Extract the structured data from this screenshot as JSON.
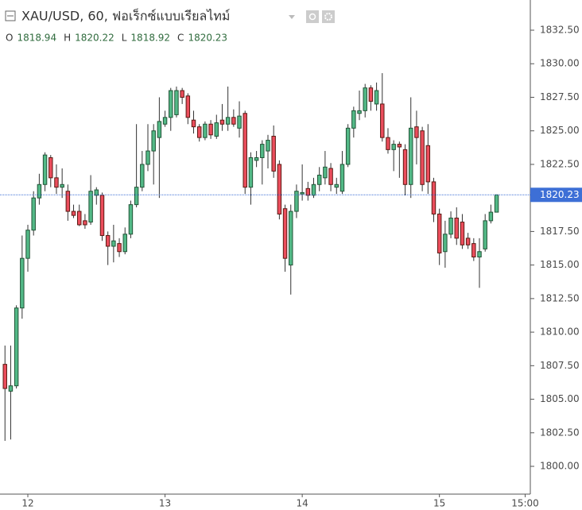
{
  "chart_data": {
    "type": "candlestick",
    "title": "XAU/USD, 60, ฟอเร็กซ์แบบเรียลไทม์",
    "ohlc_letters": [
      "O",
      "H",
      "L",
      "C"
    ],
    "x": [
      -4,
      -3,
      -2,
      -1,
      0,
      1,
      2,
      3,
      4,
      5,
      6,
      7,
      8,
      9,
      10,
      11,
      12,
      13,
      14,
      15,
      16,
      17,
      18,
      19,
      20,
      21,
      22,
      23,
      24,
      25,
      26,
      27,
      28,
      29,
      30,
      31,
      32,
      33,
      34,
      35,
      36,
      37,
      38,
      39,
      40,
      41,
      42,
      43,
      44,
      45,
      46,
      47,
      48,
      49,
      50,
      51,
      52,
      53,
      54,
      55,
      56,
      57,
      58,
      59,
      60,
      61,
      62,
      63,
      64,
      65,
      66,
      67,
      68,
      69,
      70,
      71,
      72,
      73,
      74,
      75,
      76,
      77,
      78,
      79,
      80,
      81,
      82
    ],
    "open": [
      1807.6,
      1805.6,
      1806.0,
      1811.8,
      1815.5,
      1817.6,
      1820.0,
      1821.0,
      1823.0,
      1821.5,
      1820.8,
      1820.5,
      1819.0,
      1819.0,
      1818.3,
      1818.2,
      1820.2,
      1820.2,
      1817.2,
      1816.4,
      1816.6,
      1816.0,
      1817.3,
      1819.5,
      1820.8,
      1822.5,
      1823.5,
      1824.5,
      1825.5,
      1826.0,
      1826.2,
      1828.0,
      1827.6,
      1825.8,
      1825.3,
      1824.5,
      1825.5,
      1824.6,
      1825.8,
      1825.5,
      1826.0,
      1825.2,
      1826.3,
      1820.8,
      1822.8,
      1823.0,
      1823.5,
      1824.6,
      1822.5,
      1819.2,
      1815.0,
      1819.0,
      1820.3,
      1820.7,
      1820.2,
      1821.0,
      1821.5,
      1822.2,
      1820.8,
      1820.5,
      1822.5,
      1825.2,
      1826.3,
      1826.5,
      1828.2,
      1827.0,
      1827.0,
      1824.5,
      1823.6,
      1824.0,
      1823.6,
      1821.0,
      1825.3,
      1825.0,
      1823.9,
      1821.2,
      1818.8,
      1816.0,
      1817.3,
      1818.5,
      1818.2,
      1817.0,
      1816.6,
      1815.6,
      1816.2,
      1818.3,
      1818.94
    ],
    "high": [
      1809.0,
      1809.0,
      1812.0,
      1817.2,
      1818.0,
      1820.5,
      1821.8,
      1823.4,
      1823.2,
      1822.5,
      1822.2,
      1821.0,
      1819.5,
      1819.5,
      1818.8,
      1821.7,
      1820.8,
      1820.4,
      1817.5,
      1818.0,
      1817.0,
      1817.8,
      1819.8,
      1825.5,
      1823.5,
      1825.5,
      1825.5,
      1827.5,
      1826.5,
      1828.2,
      1828.3,
      1828.2,
      1827.8,
      1826.5,
      1825.5,
      1825.7,
      1825.8,
      1826.2,
      1827.0,
      1828.3,
      1826.6,
      1827.2,
      1826.5,
      1823.4,
      1823.5,
      1824.3,
      1824.7,
      1825.4,
      1822.8,
      1819.5,
      1819.5,
      1821.0,
      1822.5,
      1821.2,
      1821.5,
      1822.3,
      1823.5,
      1822.6,
      1821.5,
      1823.5,
      1825.5,
      1826.8,
      1828.0,
      1828.5,
      1828.4,
      1828.6,
      1829.3,
      1825.2,
      1824.3,
      1824.2,
      1824.0,
      1827.5,
      1826.5,
      1825.3,
      1825.5,
      1821.5,
      1819.2,
      1818.3,
      1819.0,
      1819.3,
      1818.8,
      1817.4,
      1817.0,
      1817.0,
      1818.8,
      1819.5,
      1820.22
    ],
    "low": [
      1801.9,
      1802.0,
      1805.8,
      1811.0,
      1814.5,
      1817.2,
      1819.5,
      1820.5,
      1820.8,
      1820.3,
      1820.0,
      1818.3,
      1818.5,
      1817.9,
      1817.7,
      1818.0,
      1819.5,
      1816.8,
      1815.0,
      1815.2,
      1815.6,
      1815.8,
      1817.0,
      1819.3,
      1820.5,
      1822.0,
      1821.0,
      1820.0,
      1825.3,
      1825.0,
      1826.0,
      1827.0,
      1825.5,
      1824.8,
      1824.2,
      1824.3,
      1824.4,
      1824.4,
      1825.0,
      1825.0,
      1825.3,
      1824.5,
      1820.3,
      1819.5,
      1822.3,
      1821.0,
      1822.2,
      1821.5,
      1818.4,
      1814.5,
      1812.8,
      1818.5,
      1819.8,
      1819.8,
      1820.0,
      1820.5,
      1821.0,
      1820.5,
      1820.3,
      1820.3,
      1822.3,
      1824.5,
      1825.8,
      1826.0,
      1826.5,
      1826.5,
      1824.2,
      1823.3,
      1822.0,
      1821.5,
      1820.2,
      1820.0,
      1822.5,
      1820.5,
      1820.3,
      1818.2,
      1815.0,
      1814.8,
      1817.0,
      1816.5,
      1816.2,
      1816.2,
      1815.3,
      1813.3,
      1816.0,
      1818.1,
      1818.92
    ],
    "close": [
      1805.8,
      1806.0,
      1811.8,
      1815.5,
      1817.6,
      1820.0,
      1821.0,
      1823.2,
      1821.5,
      1820.8,
      1821.0,
      1819.0,
      1818.7,
      1818.0,
      1818.0,
      1820.5,
      1820.6,
      1817.2,
      1816.4,
      1816.8,
      1816.0,
      1817.3,
      1819.5,
      1820.8,
      1822.5,
      1823.5,
      1825.0,
      1825.7,
      1826.0,
      1828.0,
      1828.0,
      1827.5,
      1826.0,
      1825.3,
      1824.5,
      1825.5,
      1824.7,
      1825.6,
      1825.5,
      1826.0,
      1825.5,
      1826.1,
      1820.8,
      1823.0,
      1823.0,
      1824.0,
      1824.3,
      1822.0,
      1818.8,
      1815.5,
      1819.0,
      1820.5,
      1820.4,
      1820.2,
      1821.0,
      1821.7,
      1822.3,
      1821.0,
      1821.0,
      1822.5,
      1825.2,
      1826.5,
      1826.5,
      1828.2,
      1827.2,
      1828.0,
      1824.5,
      1823.6,
      1824.0,
      1823.8,
      1821.0,
      1825.2,
      1824.5,
      1821.0,
      1821.2,
      1818.8,
      1815.9,
      1817.3,
      1818.5,
      1817.0,
      1816.5,
      1816.5,
      1815.6,
      1816.0,
      1818.3,
      1818.94,
      1820.23
    ],
    "up_color": "#53b987",
    "up_border": "#225437",
    "down_color": "#eb4d5c",
    "down_border": "#5b1a13",
    "wick_color": "#333333",
    "last_price_color": "#3d6fd6",
    "xlim": [
      -4.87,
      87.9
    ],
    "xticks": [
      {
        "value": 0,
        "label": "12"
      },
      {
        "value": 24,
        "label": "13"
      },
      {
        "value": 48,
        "label": "14"
      },
      {
        "value": 72,
        "label": "15"
      },
      {
        "value": 87,
        "label": "15:00"
      }
    ],
    "ylim": [
      1797.93,
      1834.75
    ],
    "yticks": [
      {
        "value": 1800,
        "label": "1800.00"
      },
      {
        "value": 1802.5,
        "label": "1802.50"
      },
      {
        "value": 1805,
        "label": "1805.00"
      },
      {
        "value": 1807.5,
        "label": "1807.50"
      },
      {
        "value": 1810,
        "label": "1810.00"
      },
      {
        "value": 1812.5,
        "label": "1812.50"
      },
      {
        "value": 1815,
        "label": "1815.00"
      },
      {
        "value": 1817.5,
        "label": "1817.50"
      },
      {
        "value": 1820,
        "label": "1820.00"
      },
      {
        "value": 1822.5,
        "label": "1822.50"
      },
      {
        "value": 1825,
        "label": "1825.00"
      },
      {
        "value": 1827.5,
        "label": "1827.50"
      },
      {
        "value": 1830,
        "label": "1830.00"
      },
      {
        "value": 1832.5,
        "label": "1832.50"
      }
    ]
  }
}
